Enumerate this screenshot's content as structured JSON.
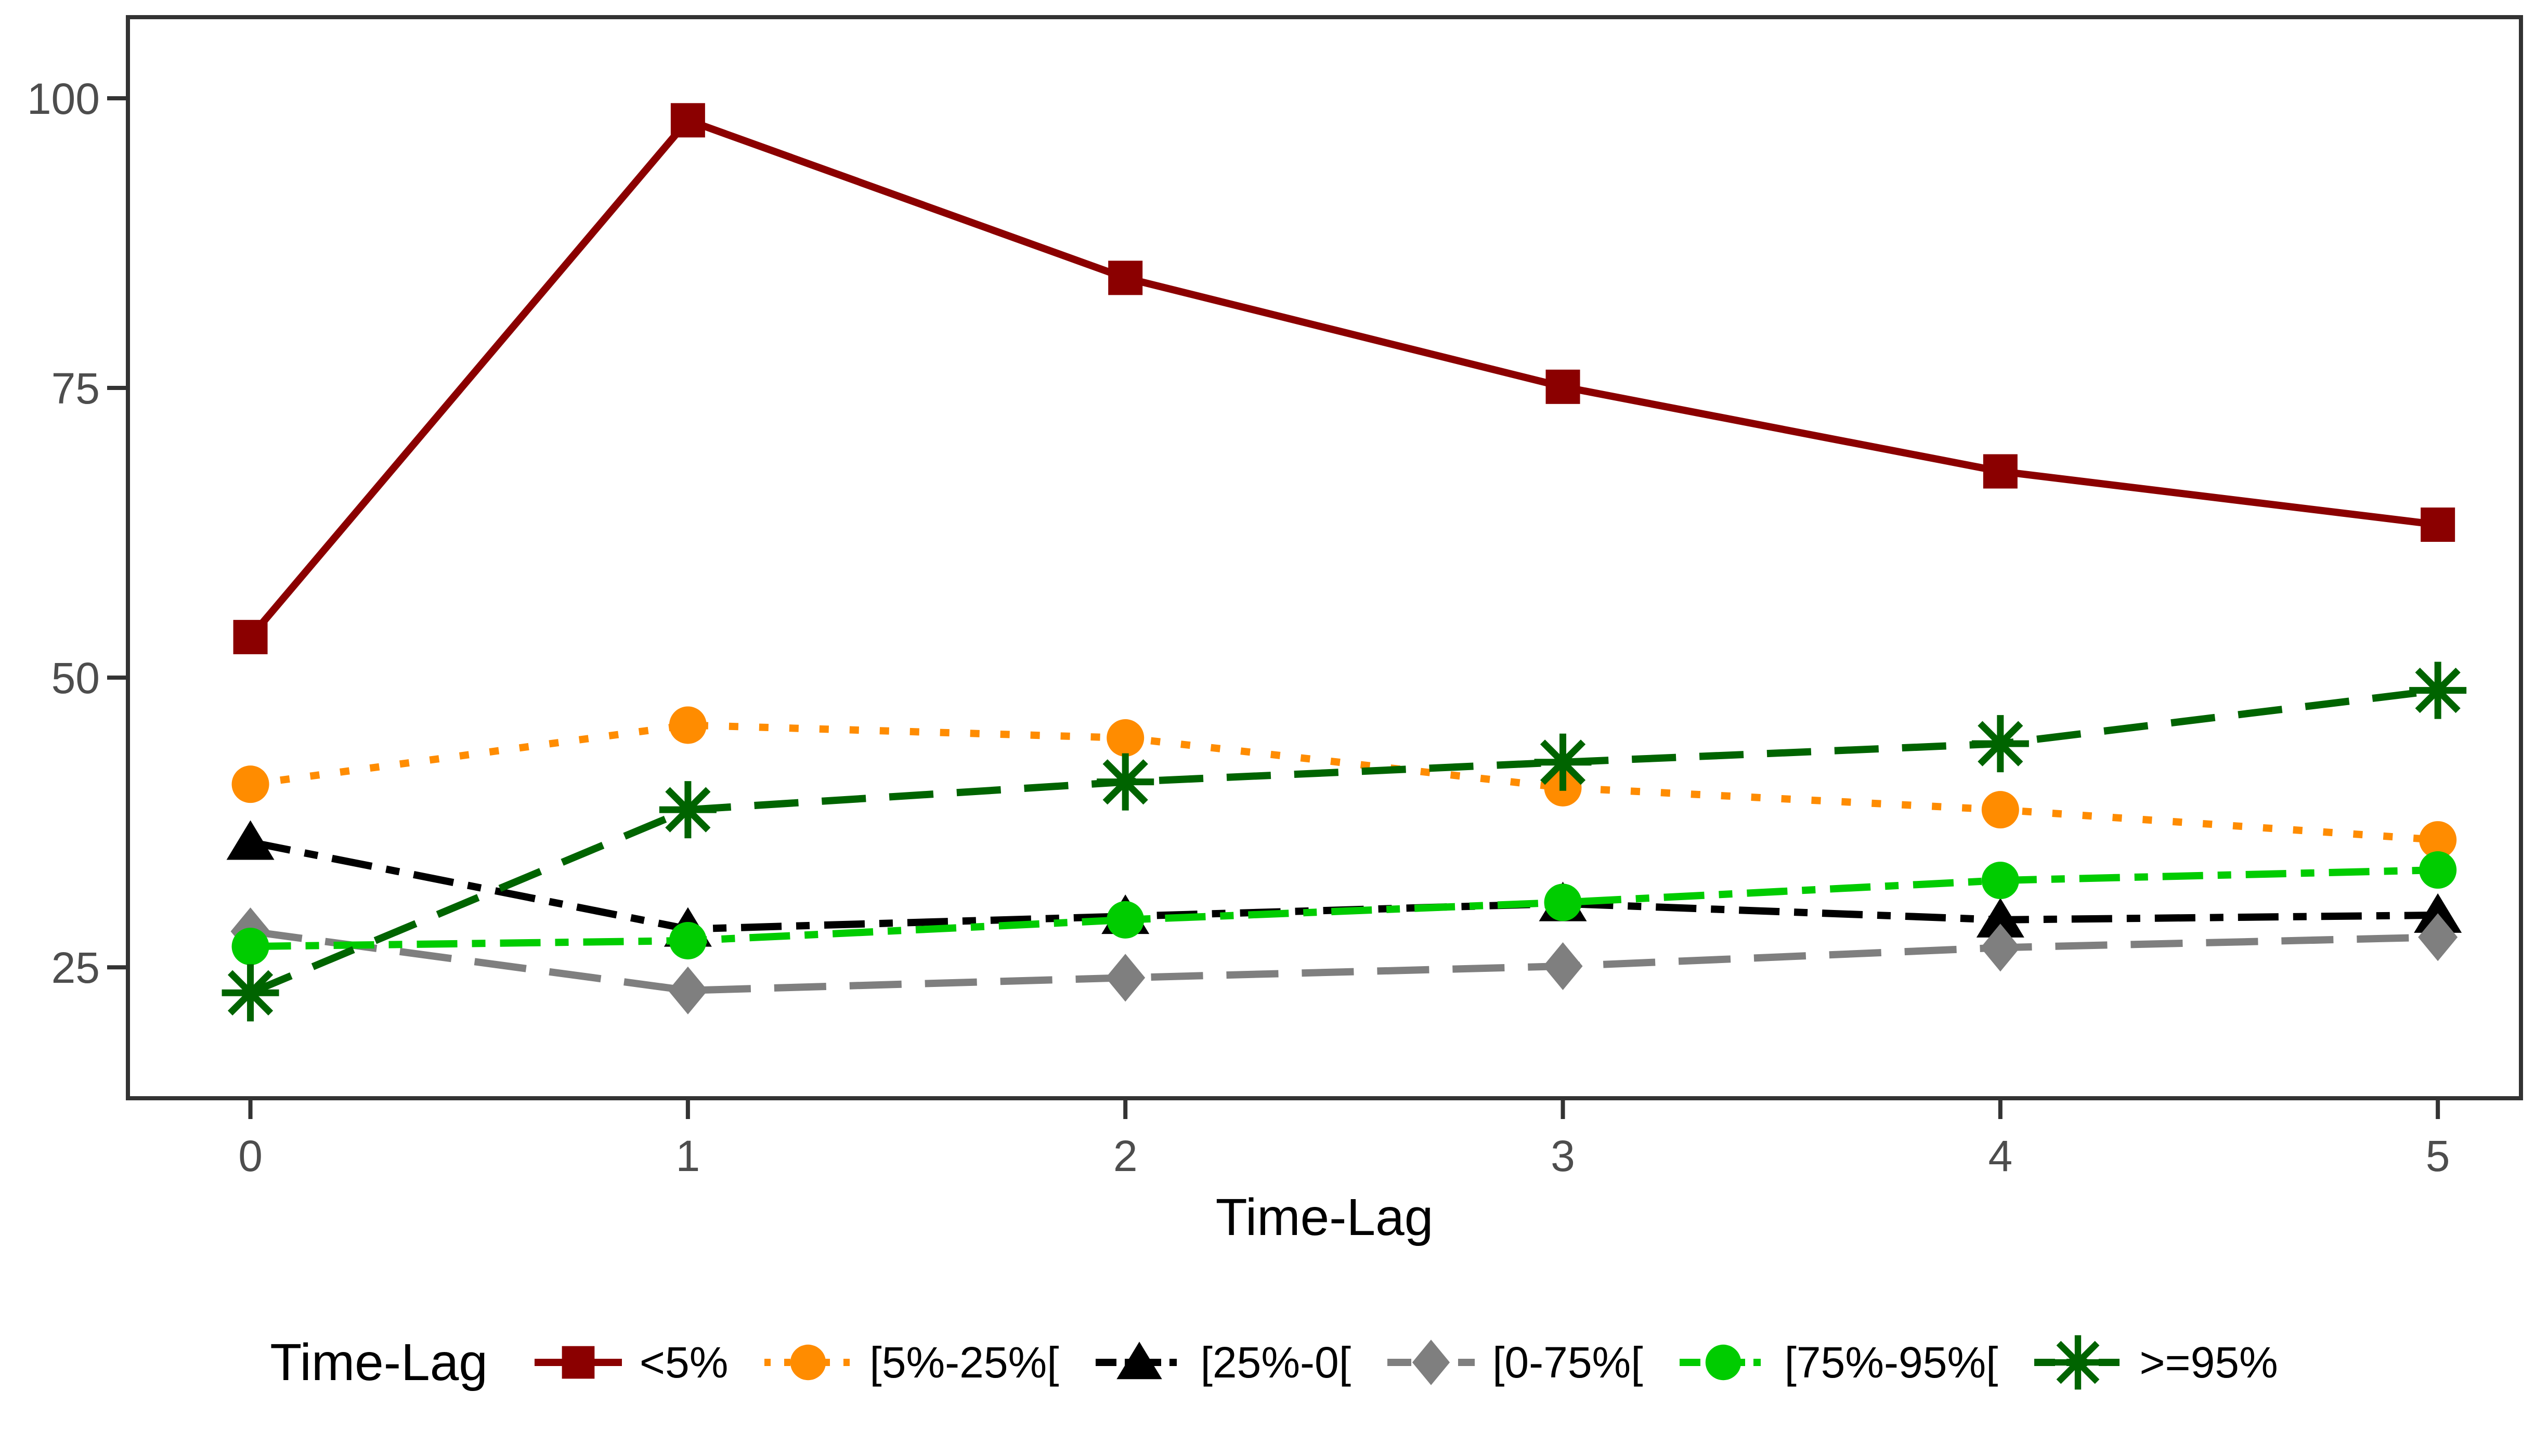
{
  "figure": {
    "background": "#FFFFFF",
    "panel_border_color": "#333333",
    "tick_color": "#333333",
    "tick_label_color": "#4D4D4D"
  },
  "chart_data": {
    "type": "line",
    "title": "",
    "xlabel": "Time-Lag",
    "ylabel": "",
    "legend_title": "Time-Lag",
    "legend_position": "bottom",
    "grid": false,
    "x": [
      0,
      1,
      2,
      3,
      4,
      5
    ],
    "x_tick_labels": [
      "0",
      "1",
      "2",
      "3",
      "4",
      "5"
    ],
    "y_ticks": [
      25,
      50,
      75,
      100
    ],
    "xlim": [
      -0.28,
      5.19
    ],
    "ylim": [
      13.7,
      107.0
    ],
    "series": [
      {
        "name": "<5%",
        "color": "#8B0000",
        "marker": "square",
        "linestyle": "solid",
        "values": [
          53.5,
          98.1,
          84.5,
          75.1,
          67.8,
          63.2
        ]
      },
      {
        "name": "[5%-25%[",
        "color": "#FF8C00",
        "marker": "circle",
        "linestyle": "dotted",
        "values": [
          40.8,
          45.9,
          44.8,
          40.5,
          38.6,
          36.0
        ]
      },
      {
        "name": "[25%-0[",
        "color": "#000000",
        "marker": "triangle",
        "linestyle": "dotdash",
        "values": [
          35.8,
          28.3,
          29.4,
          30.5,
          29.1,
          29.5
        ]
      },
      {
        "name": "[0-75%[",
        "color": "#7F7F7F",
        "marker": "diamond",
        "linestyle": "longdash",
        "values": [
          28.1,
          23.0,
          24.1,
          25.1,
          26.7,
          27.6
        ]
      },
      {
        "name": "[75%-95%[",
        "color": "#00CC00",
        "marker": "circle",
        "linestyle": "dotdash",
        "values": [
          26.8,
          27.3,
          29.1,
          30.6,
          32.5,
          33.4
        ]
      },
      {
        "name": ">=95%",
        "color": "#006400",
        "marker": "asterisk",
        "linestyle": "dashed",
        "values": [
          22.8,
          38.6,
          41.0,
          42.7,
          44.3,
          48.9
        ]
      }
    ]
  }
}
